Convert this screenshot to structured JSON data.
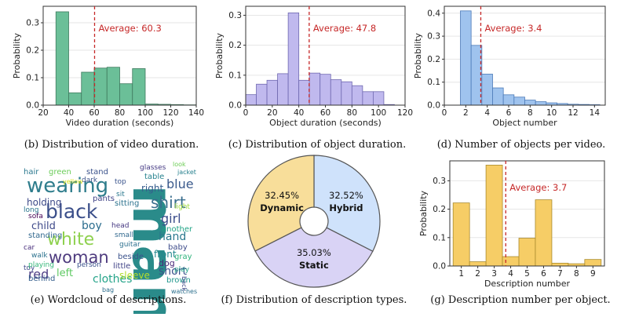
{
  "charts": [
    {
      "id": "video",
      "chart_data": {
        "type": "bar",
        "caption": "(b) Distribution of video duration.",
        "xlabel": "Video duration (seconds)",
        "ylabel": "Probability",
        "xlim": [
          20,
          140
        ],
        "ylim": [
          0,
          0.36
        ],
        "xticks": [
          20,
          40,
          60,
          80,
          100,
          120,
          140
        ],
        "yticks": [
          0.0,
          0.1,
          0.2,
          0.3
        ],
        "bins": [
          [
            30,
            40,
            0.34
          ],
          [
            40,
            50,
            0.045
          ],
          [
            50,
            60,
            0.12
          ],
          [
            60,
            70,
            0.135
          ],
          [
            70,
            80,
            0.138
          ],
          [
            80,
            90,
            0.078
          ],
          [
            90,
            100,
            0.133
          ],
          [
            100,
            110,
            0.004
          ],
          [
            110,
            120,
            0.003
          ],
          [
            120,
            130,
            0.002
          ],
          [
            130,
            140,
            0.001
          ]
        ],
        "average": 60.3,
        "average_label": "Average: 60.3",
        "color": "#6bbf98",
        "edge": "#3f7a5f"
      }
    },
    {
      "id": "object",
      "chart_data": {
        "type": "bar",
        "caption": "(c) Distribution of object duration.",
        "xlabel": "Object duration (seconds)",
        "ylabel": "Probability",
        "xlim": [
          0,
          120
        ],
        "ylim": [
          0,
          0.33
        ],
        "xticks": [
          0,
          20,
          40,
          60,
          80,
          100,
          120
        ],
        "yticks": [
          0.0,
          0.1,
          0.2,
          0.3
        ],
        "bins": [
          [
            0,
            8,
            0.035
          ],
          [
            8,
            16,
            0.07
          ],
          [
            16,
            24,
            0.083
          ],
          [
            24,
            32,
            0.105
          ],
          [
            32,
            40,
            0.308
          ],
          [
            40,
            48,
            0.083
          ],
          [
            48,
            56,
            0.107
          ],
          [
            56,
            64,
            0.103
          ],
          [
            64,
            72,
            0.085
          ],
          [
            72,
            80,
            0.078
          ],
          [
            80,
            88,
            0.065
          ],
          [
            88,
            96,
            0.045
          ],
          [
            96,
            104,
            0.045
          ],
          [
            104,
            112,
            0.002
          ]
        ],
        "average": 47.8,
        "average_label": "Average: 47.8",
        "color": "#c0b9ee",
        "edge": "#6f68b0"
      }
    },
    {
      "id": "number",
      "chart_data": {
        "type": "bar",
        "caption": "(d) Number of objects per video.",
        "xlabel": "Object number",
        "ylabel": "Probability",
        "xlim": [
          0,
          15
        ],
        "ylim": [
          0,
          0.43
        ],
        "xticks": [
          0,
          2,
          4,
          6,
          8,
          10,
          12,
          14
        ],
        "yticks": [
          0.0,
          0.1,
          0.2,
          0.3,
          0.4
        ],
        "bins": [
          [
            1.5,
            2.5,
            0.41
          ],
          [
            2.5,
            3.5,
            0.26
          ],
          [
            3.5,
            4.5,
            0.135
          ],
          [
            4.5,
            5.5,
            0.075
          ],
          [
            5.5,
            6.5,
            0.045
          ],
          [
            6.5,
            7.5,
            0.035
          ],
          [
            7.5,
            8.5,
            0.022
          ],
          [
            8.5,
            9.5,
            0.015
          ],
          [
            9.5,
            10.5,
            0.01
          ],
          [
            10.5,
            11.5,
            0.007
          ],
          [
            11.5,
            12.5,
            0.004
          ],
          [
            12.5,
            13.5,
            0.003
          ],
          [
            13.5,
            14.5,
            0.002
          ]
        ],
        "average": 3.4,
        "average_label": "Average: 3.4",
        "color": "#9fc3ee",
        "edge": "#4d7bb8"
      }
    },
    {
      "id": "descnum",
      "chart_data": {
        "type": "bar",
        "caption": "(g) Description number per object.",
        "xlabel": "Description number",
        "ylabel": "Probability",
        "xlim": [
          0.3,
          9.7
        ],
        "ylim": [
          0,
          0.37
        ],
        "xticks": [
          1,
          2,
          3,
          4,
          5,
          6,
          7,
          8,
          9
        ],
        "yticks": [
          0.0,
          0.1,
          0.2,
          0.3
        ],
        "bins": [
          [
            0.5,
            1.5,
            0.222
          ],
          [
            1.5,
            2.5,
            0.015
          ],
          [
            2.5,
            3.5,
            0.355
          ],
          [
            3.5,
            4.5,
            0.033
          ],
          [
            4.5,
            5.5,
            0.098
          ],
          [
            5.5,
            6.5,
            0.233
          ],
          [
            6.5,
            7.5,
            0.01
          ],
          [
            7.5,
            8.5,
            0.008
          ],
          [
            8.5,
            9.5,
            0.023
          ]
        ],
        "average": 3.7,
        "average_label": "Average: 3.7",
        "color": "#f6cd66",
        "edge": "#a98a2c"
      }
    }
  ],
  "pie": {
    "caption": "(f) Distribution of description types.",
    "chart_data": {
      "type": "pie",
      "slices": [
        {
          "name": "Hybrid",
          "value": 32.52,
          "label": "32.52%",
          "color": "#cfe2fb"
        },
        {
          "name": "Static",
          "value": 35.03,
          "label": "35.03%",
          "color": "#d9d3f5"
        },
        {
          "name": "Dynamic",
          "value": 32.45,
          "label": "32.45%",
          "color": "#f8de9a"
        }
      ]
    }
  },
  "wordcloud": {
    "caption": "(e) Wordcloud of descriptions.",
    "words": [
      "man",
      "wearing",
      "black",
      "woman",
      "white",
      "shirt",
      "red",
      "blue",
      "clothes",
      "girl",
      "child",
      "boy",
      "hand",
      "short",
      "front",
      "holding",
      "left",
      "right",
      "another",
      "dog",
      "hair",
      "green",
      "stand",
      "pants",
      "standing",
      "sitting",
      "baby",
      "brown",
      "little",
      "table",
      "sleeve",
      "car",
      "toy",
      "walk",
      "beside",
      "gray",
      "glasses",
      "jacket",
      "sofa",
      "playing",
      "person",
      "behind",
      "guitar",
      "look",
      "top",
      "sit",
      "play",
      "head",
      "dark",
      "long",
      "small",
      "light",
      "watches",
      "back",
      "bag",
      "yellow"
    ]
  }
}
